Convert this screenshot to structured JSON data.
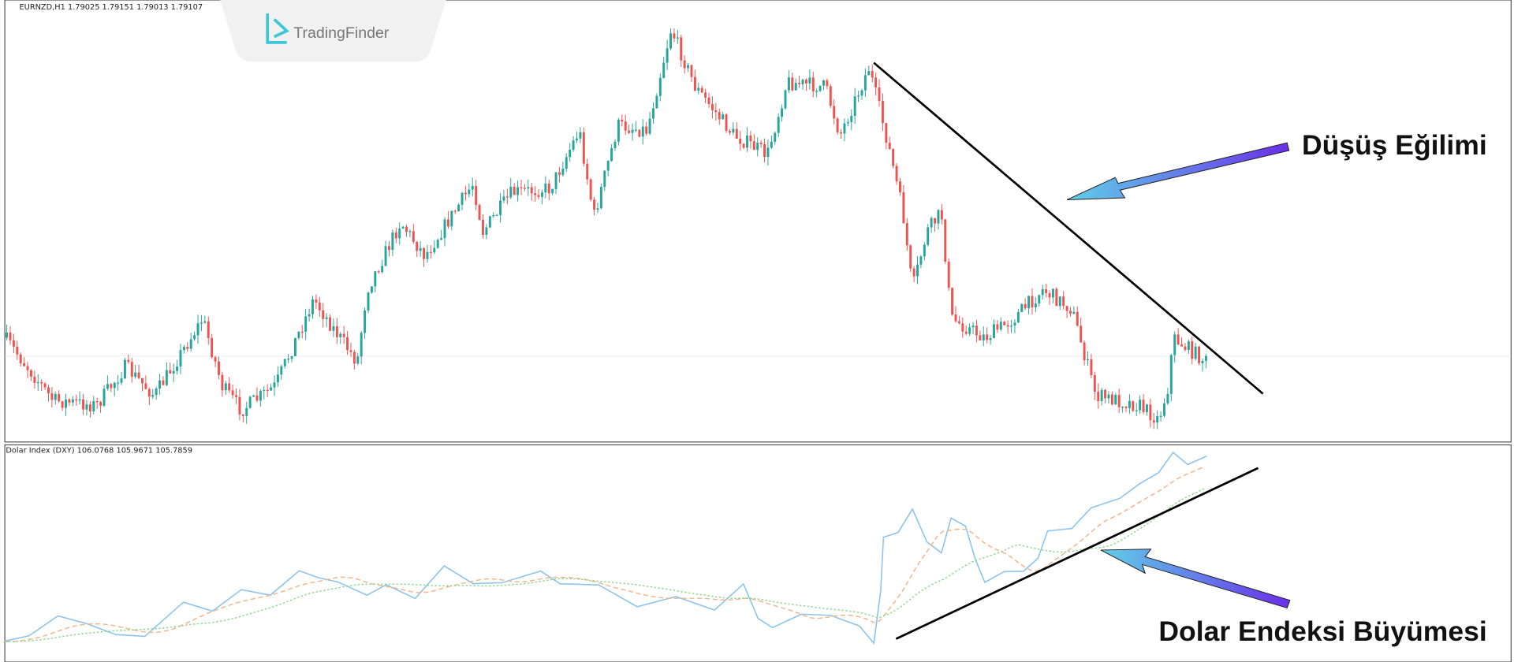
{
  "header": {
    "symbol_info": "EURNZD,H1  1.79025 1.79151 1.79013 1.79107"
  },
  "indicator": {
    "info": "Dolar Index (DXY) 106.0768 105.9671 105.7859"
  },
  "logo": {
    "text": "TradingFinder"
  },
  "annotations": {
    "downtrend": "Düşüş Eğilimi",
    "dollar_growth": "Dolar Endeksi Büyümesi"
  }
}
